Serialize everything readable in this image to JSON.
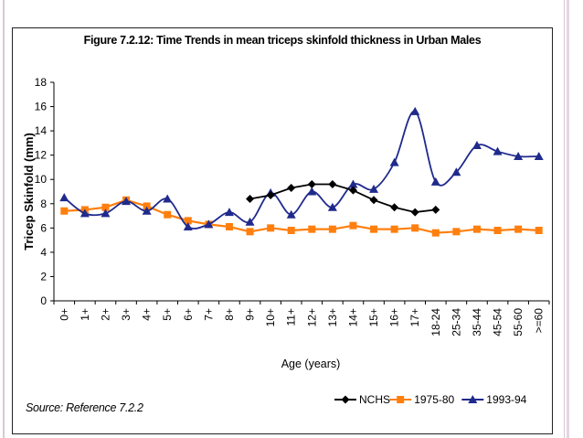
{
  "chart_data": {
    "type": "line",
    "title": "Figure 7.2.12: Time Trends in mean triceps skinfold thickness in Urban Males",
    "xlabel": "Age (years)",
    "ylabel": "Tricep Skinfold (mm)",
    "ylim": [
      0,
      18
    ],
    "yticks": [
      "0",
      "2",
      "4",
      "6",
      "8",
      "10",
      "12",
      "14",
      "16",
      "18"
    ],
    "categories": [
      "0+",
      "1+",
      "2+",
      "3+",
      "4+",
      "5+",
      "6+",
      "7+",
      "8+",
      "9+",
      "10+",
      "11+",
      "12+",
      "13+",
      "14+",
      "15+",
      "16+",
      "17+",
      "18-24",
      "25-34",
      "35-44",
      "45-54",
      "55-60",
      ">=60"
    ],
    "series": [
      {
        "name": "NCHS",
        "color": "#000000",
        "marker": "diamond",
        "values": [
          null,
          null,
          null,
          null,
          null,
          null,
          null,
          null,
          null,
          8.4,
          8.7,
          9.3,
          9.6,
          9.6,
          9.1,
          8.3,
          7.7,
          7.3,
          7.5,
          null,
          null,
          null,
          null,
          null
        ]
      },
      {
        "name": "1975-80",
        "color": "#ff7f0e",
        "marker": "square",
        "values": [
          7.4,
          7.5,
          7.7,
          8.3,
          7.8,
          7.1,
          6.6,
          6.3,
          6.1,
          5.7,
          6.0,
          5.8,
          5.9,
          5.9,
          6.2,
          5.9,
          5.9,
          6.0,
          5.6,
          5.7,
          5.9,
          5.8,
          5.9,
          5.8
        ]
      },
      {
        "name": "1993-94",
        "color": "#1f2a8c",
        "marker": "triangle",
        "values": [
          8.5,
          7.2,
          7.2,
          8.2,
          7.4,
          8.4,
          6.1,
          6.3,
          7.3,
          6.5,
          8.9,
          7.1,
          9.0,
          7.7,
          9.6,
          9.2,
          11.4,
          15.6,
          9.8,
          10.6,
          12.8,
          12.3,
          11.9,
          11.9
        ]
      }
    ],
    "legend_position": "bottom-right",
    "grid": false
  },
  "source_note": "Source: Reference 7.2.2"
}
